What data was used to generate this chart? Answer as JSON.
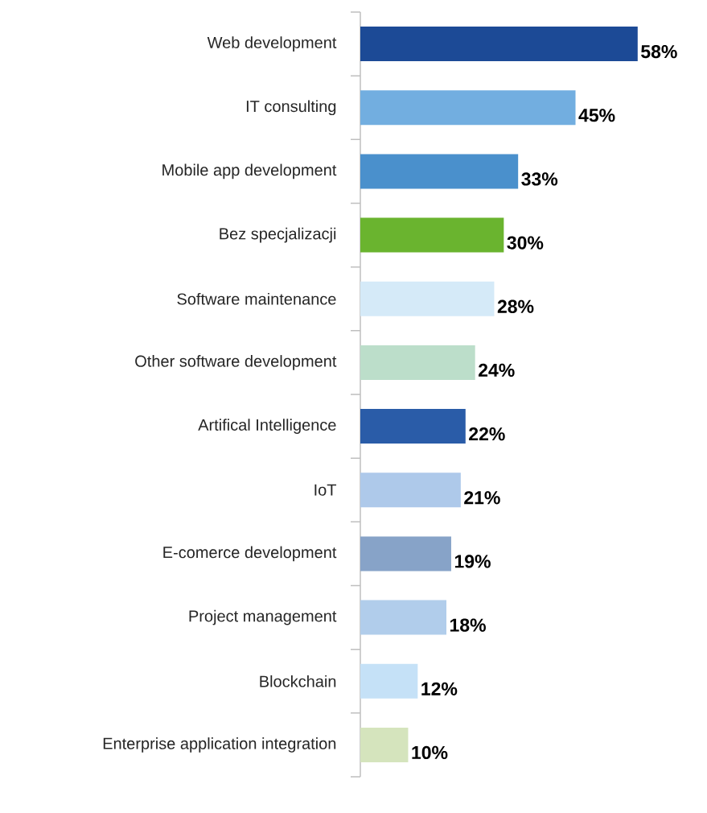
{
  "chart_data": {
    "type": "bar",
    "orientation": "horizontal",
    "categories": [
      "Web development",
      "IT consulting",
      "Mobile app development",
      "Bez specjalizacji",
      "Software maintenance",
      "Other software development",
      "Artifical Intelligence",
      "IoT",
      "E-comerce development",
      "Project management",
      "Blockchain",
      "Enterprise  application integration"
    ],
    "values": [
      58,
      45,
      33,
      30,
      28,
      24,
      22,
      21,
      19,
      18,
      12,
      10
    ],
    "value_labels": [
      "58%",
      "45%",
      "33%",
      "30%",
      "28%",
      "24%",
      "22%",
      "21%",
      "19%",
      "18%",
      "12%",
      "10%"
    ],
    "colors": [
      "#1c4a96",
      "#72aee0",
      "#4a90cc",
      "#6ab42f",
      "#d5eaf8",
      "#bcdeca",
      "#2a5ca8",
      "#aec9ea",
      "#87a3c8",
      "#b1cdeb",
      "#c5e1f7",
      "#d5e4bd"
    ]
  }
}
